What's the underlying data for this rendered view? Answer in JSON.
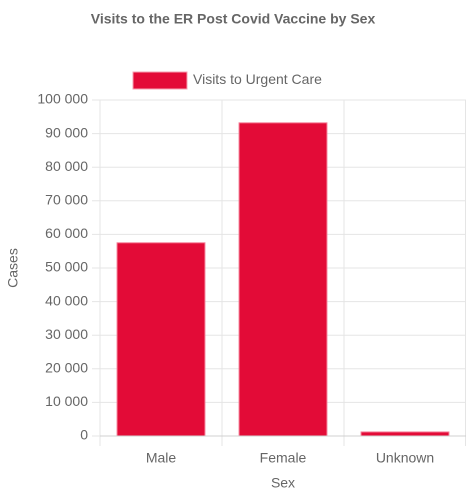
{
  "chart_data": {
    "type": "bar",
    "title": "Visits to the ER Post Covid Vaccine by Sex",
    "x_label": "Sex",
    "y_label": "Cases",
    "categories": [
      "Male",
      "Female",
      "Unknown"
    ],
    "series": [
      {
        "name": "Visits to Urgent Care",
        "color": "#e30b37",
        "values": [
          57500,
          93200,
          1200
        ]
      }
    ],
    "ylim": [
      0,
      100000
    ],
    "yticks": [
      0,
      {
        "value": 10000,
        "label": "10 000"
      },
      {
        "value": 20000,
        "label": "20 000"
      },
      {
        "value": 30000,
        "label": "30 000"
      },
      {
        "value": 40000,
        "label": "40 000"
      },
      {
        "value": 50000,
        "label": "50 000"
      },
      {
        "value": 60000,
        "label": "60 000"
      },
      {
        "value": 70000,
        "label": "70 000"
      },
      {
        "value": 80000,
        "label": "80 000"
      },
      {
        "value": 90000,
        "label": "90 000"
      },
      {
        "value": 100000,
        "label": "100 000"
      }
    ],
    "grid": true,
    "legend": "top"
  }
}
